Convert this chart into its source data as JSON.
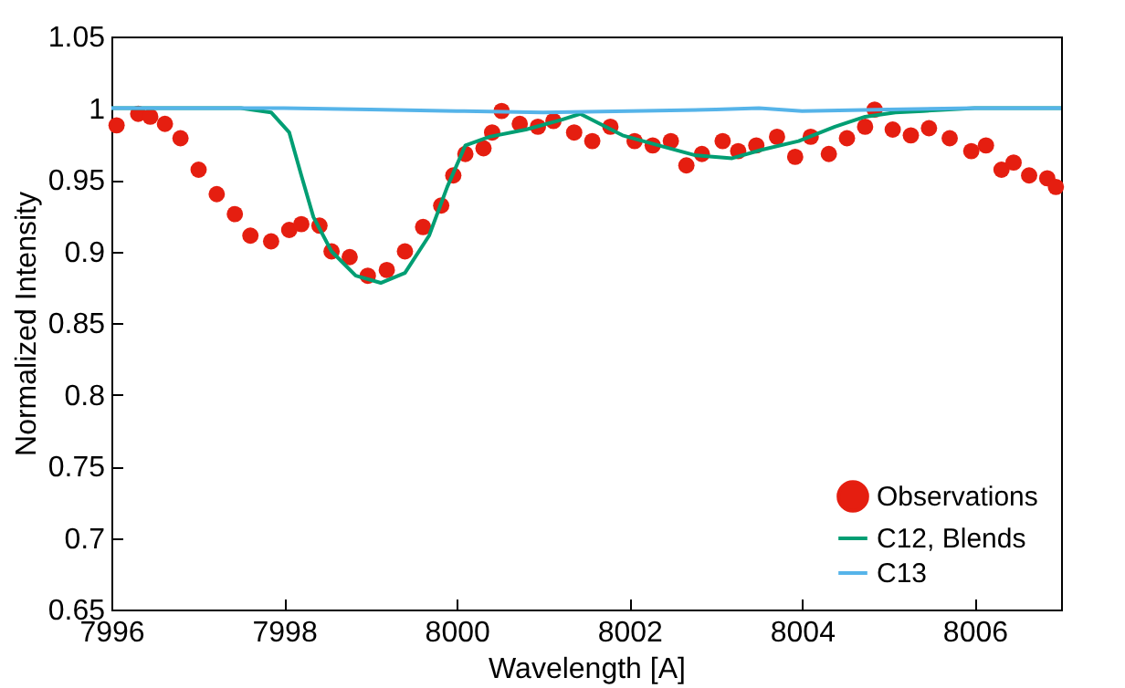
{
  "chart_data": {
    "type": "line",
    "xlabel": "Wavelength [A]",
    "ylabel": "Normalized Intensity",
    "xlim": [
      7996,
      8007
    ],
    "ylim": [
      0.65,
      1.05
    ],
    "xticks": [
      7996,
      7998,
      8000,
      8002,
      8004,
      8006
    ],
    "yticks": [
      0.65,
      0.7,
      0.75,
      0.8,
      0.85,
      0.9,
      0.95,
      1,
      1.05
    ],
    "grid": false,
    "legend": "bottom right",
    "series": [
      {
        "name": "Observations",
        "type": "scatter",
        "marker": "circle",
        "color": "#e51e10",
        "x": [
          7996.06,
          7996.31,
          7996.45,
          7996.62,
          7996.8,
          7997.01,
          7997.22,
          7997.43,
          7997.61,
          7997.85,
          7998.06,
          7998.2,
          7998.41,
          7998.55,
          7998.76,
          7998.97,
          7999.19,
          7999.4,
          7999.61,
          7999.82,
          7999.96,
          8000.1,
          8000.31,
          8000.41,
          8000.52,
          8000.73,
          8000.94,
          8001.12,
          8001.36,
          8001.57,
          8001.78,
          8002.06,
          8002.27,
          8002.48,
          8002.66,
          8002.84,
          8003.08,
          8003.26,
          8003.47,
          8003.71,
          8003.92,
          8004.1,
          8004.31,
          8004.52,
          8004.73,
          8004.84,
          8005.05,
          8005.26,
          8005.47,
          8005.71,
          8005.96,
          8006.13,
          8006.31,
          8006.45,
          8006.63,
          8006.84,
          8006.94
        ],
        "values": [
          0.988,
          0.996,
          0.994,
          0.989,
          0.979,
          0.957,
          0.94,
          0.926,
          0.911,
          0.907,
          0.915,
          0.919,
          0.918,
          0.9,
          0.896,
          0.883,
          0.887,
          0.9,
          0.917,
          0.932,
          0.953,
          0.968,
          0.972,
          0.983,
          0.998,
          0.989,
          0.987,
          0.991,
          0.983,
          0.977,
          0.987,
          0.977,
          0.974,
          0.977,
          0.96,
          0.968,
          0.977,
          0.97,
          0.974,
          0.98,
          0.966,
          0.98,
          0.968,
          0.979,
          0.987,
          0.999,
          0.985,
          0.981,
          0.986,
          0.979,
          0.97,
          0.974,
          0.957,
          0.962,
          0.953,
          0.951,
          0.945
        ]
      },
      {
        "name": "C12, Blends",
        "color": "#009e73",
        "x": [
          7996,
          7997.5,
          7997.85,
          7998.06,
          7998.2,
          7998.34,
          7998.55,
          7998.83,
          7999.12,
          7999.4,
          7999.68,
          7999.89,
          8000.1,
          8000.38,
          8000.8,
          8001.22,
          8001.43,
          8001.92,
          8002.34,
          8002.77,
          8003.19,
          8003.54,
          8003.96,
          8004.38,
          8004.73,
          8005.08,
          8005.4,
          8006,
          8007
        ],
        "values": [
          1,
          1,
          0.997,
          0.983,
          0.953,
          0.924,
          0.9,
          0.883,
          0.878,
          0.885,
          0.911,
          0.945,
          0.974,
          0.98,
          0.985,
          0.992,
          0.996,
          0.981,
          0.974,
          0.967,
          0.965,
          0.971,
          0.977,
          0.987,
          0.994,
          0.997,
          0.998,
          1,
          1
        ]
      },
      {
        "name": "C13",
        "color": "#56b4e9",
        "x": [
          7996,
          7998,
          7999,
          8000,
          8001,
          8002,
          8003,
          8003.5,
          8004,
          8005,
          8006,
          8007
        ],
        "values": [
          1,
          1,
          0.999,
          0.998,
          0.997,
          0.998,
          0.999,
          1,
          0.998,
          0.999,
          1,
          1
        ]
      }
    ]
  }
}
